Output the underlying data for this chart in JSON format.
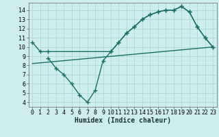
{
  "background_color": "#ceeeed",
  "grid_color": "#aed8d5",
  "line_color": "#1a6e65",
  "line_width": 1.0,
  "marker": "+",
  "markersize": 4,
  "markeredgewidth": 1.0,
  "xlabel": "Humidex (Indice chaleur)",
  "xlabel_fontsize": 7,
  "tick_fontsize": 6,
  "xlim": [
    -0.5,
    23.5
  ],
  "ylim": [
    3.5,
    14.8
  ],
  "yticks": [
    4,
    5,
    6,
    7,
    8,
    9,
    10,
    11,
    12,
    13,
    14
  ],
  "xticks": [
    0,
    1,
    2,
    3,
    4,
    5,
    6,
    7,
    8,
    9,
    10,
    11,
    12,
    13,
    14,
    15,
    16,
    17,
    18,
    19,
    20,
    21,
    22,
    23
  ],
  "line1_x": [
    0,
    1,
    2,
    10,
    11,
    12,
    13,
    14,
    15,
    16,
    17,
    18,
    19,
    20,
    21,
    22,
    23
  ],
  "line1_y": [
    10.5,
    9.5,
    9.5,
    9.5,
    10.5,
    11.5,
    12.2,
    13.0,
    13.5,
    13.8,
    14.0,
    14.0,
    14.4,
    13.8,
    12.2,
    11.0,
    10.0
  ],
  "line2_x": [
    2,
    3,
    4,
    5,
    6,
    7,
    8,
    9,
    10,
    11,
    12,
    13,
    14,
    15,
    16,
    17,
    18,
    19,
    20,
    21,
    22,
    23
  ],
  "line2_y": [
    8.8,
    7.7,
    7.0,
    6.0,
    4.8,
    4.0,
    5.3,
    8.5,
    9.5,
    10.5,
    11.5,
    12.2,
    13.0,
    13.5,
    13.8,
    14.0,
    14.0,
    14.4,
    13.8,
    12.2,
    11.0,
    10.0
  ],
  "line3_x": [
    0,
    23
  ],
  "line3_y": [
    8.2,
    10.0
  ],
  "font_family": "monospace"
}
